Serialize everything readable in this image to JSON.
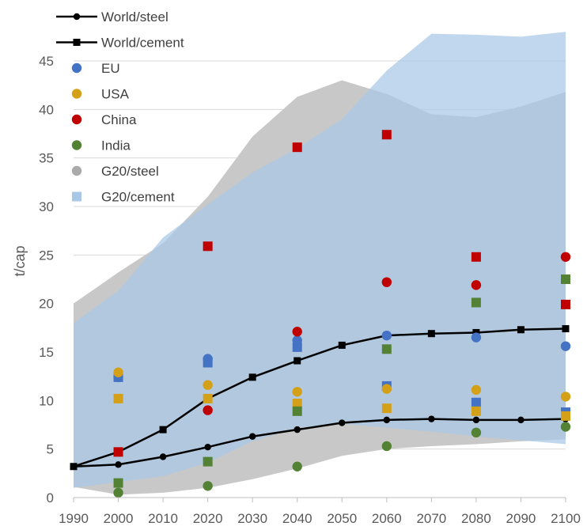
{
  "chart_data": {
    "type": "scatter",
    "title": "",
    "xlabel": "",
    "ylabel": "t/cap",
    "xlim": [
      1990,
      2100
    ],
    "ylim": [
      0,
      45
    ],
    "x_ticks": [
      1990,
      2000,
      2010,
      2020,
      2030,
      2040,
      2050,
      2060,
      2070,
      2080,
      2090,
      2100
    ],
    "y_ticks": [
      0,
      5,
      10,
      15,
      20,
      25,
      30,
      35,
      40,
      45
    ],
    "grid": "horizontal",
    "legend_position": "top-left",
    "bands": [
      {
        "name": "G20/steel",
        "color": "#c8c8c8",
        "x": [
          1990,
          2000,
          2010,
          2020,
          2030,
          2040,
          2050,
          2060,
          2070,
          2080,
          2090,
          2100
        ],
        "upper": [
          20.0,
          23.2,
          26.2,
          31.0,
          37.2,
          41.3,
          43.0,
          41.6,
          39.5,
          39.2,
          40.3,
          41.8
        ],
        "lower": [
          1.1,
          0.3,
          0.5,
          1.0,
          1.9,
          3.0,
          4.3,
          5.0,
          5.3,
          5.5,
          5.8,
          6.0
        ]
      },
      {
        "name": "G20/cement",
        "color": "#a7c7e7",
        "x": [
          1990,
          2000,
          2010,
          2020,
          2030,
          2040,
          2050,
          2060,
          2070,
          2080,
          2090,
          2100
        ],
        "upper": [
          18.0,
          21.3,
          26.8,
          30.2,
          33.5,
          36.0,
          39.0,
          44.0,
          47.8,
          47.7,
          47.5,
          48.0
        ],
        "lower": [
          1.0,
          1.6,
          2.2,
          3.6,
          5.8,
          7.2,
          7.6,
          7.2,
          6.8,
          6.3,
          5.9,
          5.5
        ]
      }
    ],
    "lines": [
      {
        "name": "World/steel",
        "marker": "circle",
        "color": "#000000",
        "x": [
          1990,
          2000,
          2010,
          2020,
          2030,
          2040,
          2050,
          2060,
          2070,
          2080,
          2090,
          2100
        ],
        "y": [
          3.2,
          3.4,
          4.2,
          5.2,
          6.3,
          7.0,
          7.7,
          8.0,
          8.1,
          8.0,
          8.0,
          8.1
        ]
      },
      {
        "name": "World/cement",
        "marker": "square",
        "color": "#000000",
        "x": [
          1990,
          2000,
          2010,
          2020,
          2030,
          2040,
          2050,
          2060,
          2070,
          2080,
          2090,
          2100
        ],
        "y": [
          3.2,
          4.7,
          7.0,
          10.2,
          12.4,
          14.1,
          15.7,
          16.7,
          16.9,
          17.0,
          17.3,
          17.4
        ]
      }
    ],
    "points": [
      {
        "name": "EU",
        "color": "#4472c4",
        "steel": {
          "x": [
            2000,
            2020,
            2040,
            2060,
            2080,
            2100
          ],
          "y": [
            12.4,
            14.3,
            16.2,
            16.7,
            16.5,
            15.6
          ]
        },
        "cement": {
          "x": [
            2000,
            2020,
            2040,
            2060,
            2080,
            2100
          ],
          "y": [
            12.4,
            13.9,
            15.5,
            11.5,
            9.8,
            8.8
          ]
        }
      },
      {
        "name": "USA",
        "color": "#d4a017",
        "steel": {
          "x": [
            2000,
            2020,
            2040,
            2060,
            2080,
            2100
          ],
          "y": [
            12.9,
            11.6,
            10.9,
            11.2,
            11.1,
            10.4
          ]
        },
        "cement": {
          "x": [
            2000,
            2020,
            2040,
            2060,
            2080,
            2100
          ],
          "y": [
            10.2,
            10.2,
            9.7,
            9.2,
            8.9,
            8.4
          ]
        }
      },
      {
        "name": "China",
        "color": "#c00000",
        "steel": {
          "x": [
            2020,
            2040,
            2060,
            2080,
            2100
          ],
          "y": [
            9.0,
            17.1,
            22.2,
            21.9,
            24.8
          ]
        },
        "cement": {
          "x": [
            2000,
            2020,
            2040,
            2060,
            2080,
            2100
          ],
          "y": [
            4.7,
            25.9,
            36.1,
            37.4,
            24.8,
            19.9
          ]
        }
      },
      {
        "name": "India",
        "color": "#548235",
        "steel": {
          "x": [
            2000,
            2020,
            2040,
            2060,
            2080,
            2100
          ],
          "y": [
            0.5,
            1.2,
            3.2,
            5.3,
            6.7,
            7.3
          ]
        },
        "cement": {
          "x": [
            2000,
            2020,
            2040,
            2060,
            2080,
            2100
          ],
          "y": [
            1.5,
            3.7,
            8.9,
            15.3,
            20.1,
            22.5
          ]
        }
      }
    ],
    "legend": [
      {
        "label": "World/steel",
        "kind": "line-circle",
        "color": "#000000"
      },
      {
        "label": "World/cement",
        "kind": "line-square",
        "color": "#000000"
      },
      {
        "label": "EU",
        "kind": "circle",
        "color": "#4472c4"
      },
      {
        "label": "USA",
        "kind": "circle",
        "color": "#d4a017"
      },
      {
        "label": "China",
        "kind": "circle",
        "color": "#c00000"
      },
      {
        "label": "India",
        "kind": "circle",
        "color": "#548235"
      },
      {
        "label": "G20/steel",
        "kind": "circle",
        "color": "#aaaaaa"
      },
      {
        "label": "G20/cement",
        "kind": "square",
        "color": "#a7c7e7"
      }
    ]
  }
}
